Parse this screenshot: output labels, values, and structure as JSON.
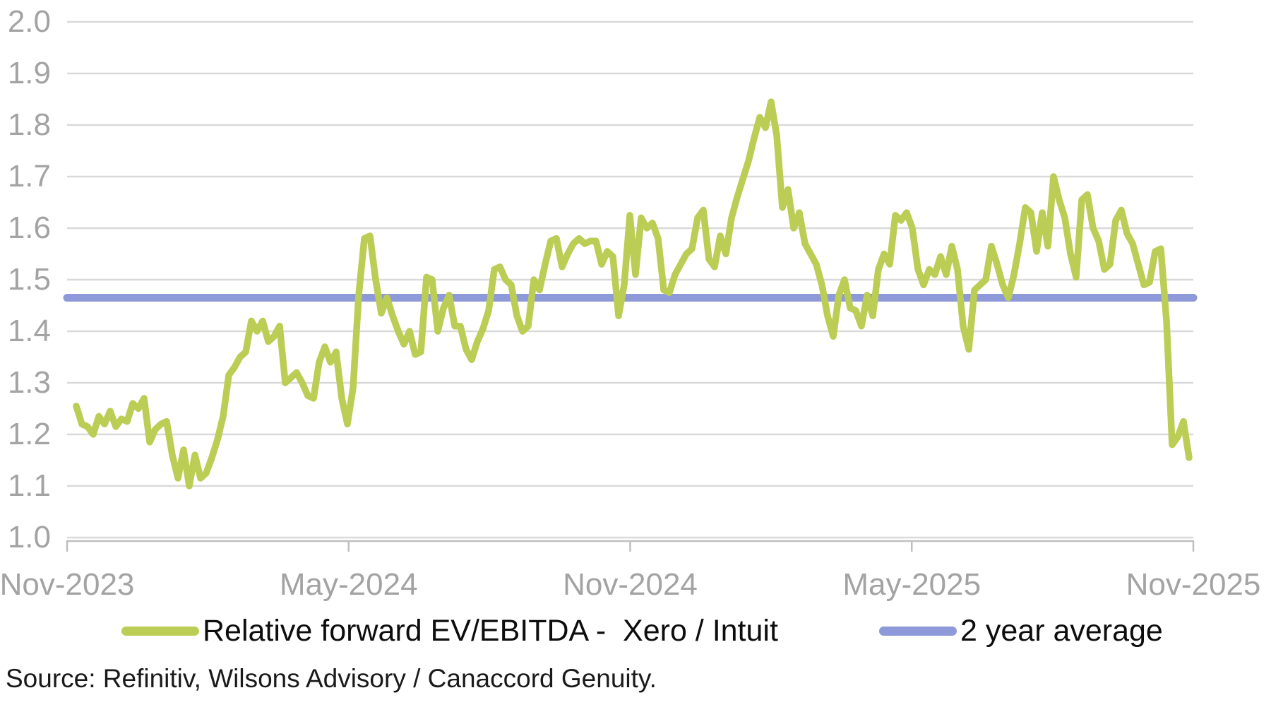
{
  "chart_data": {
    "type": "line",
    "title": "",
    "xlabel": "",
    "ylabel": "",
    "ylim": [
      1.0,
      2.0
    ],
    "grid": "horizontal",
    "legend_position": "bottom",
    "x_ticks": [
      "Nov-2023",
      "May-2024",
      "Nov-2024",
      "May-2025",
      "Nov-2025"
    ],
    "y_ticks": [
      "2.0",
      "1.9",
      "1.8",
      "1.7",
      "1.6",
      "1.5",
      "1.4",
      "1.3",
      "1.2",
      "1.1",
      "1.0"
    ],
    "series": [
      {
        "name": "Relative forward EV/EBITDA -  Xero / Intuit",
        "color": "#bccd55",
        "x_range": [
          "Nov-2023",
          "Nov-2025"
        ],
        "note": "evenly spaced samples of the daily ratio line",
        "values": [
          1.255,
          1.22,
          1.215,
          1.2,
          1.235,
          1.22,
          1.245,
          1.215,
          1.23,
          1.225,
          1.26,
          1.25,
          1.27,
          1.185,
          1.21,
          1.22,
          1.225,
          1.16,
          1.115,
          1.17,
          1.1,
          1.16,
          1.115,
          1.125,
          1.155,
          1.19,
          1.235,
          1.315,
          1.33,
          1.35,
          1.36,
          1.42,
          1.4,
          1.42,
          1.38,
          1.39,
          1.41,
          1.3,
          1.31,
          1.32,
          1.3,
          1.275,
          1.27,
          1.34,
          1.37,
          1.34,
          1.36,
          1.27,
          1.22,
          1.29,
          1.47,
          1.58,
          1.585,
          1.5,
          1.435,
          1.465,
          1.43,
          1.4,
          1.375,
          1.4,
          1.355,
          1.36,
          1.505,
          1.5,
          1.4,
          1.445,
          1.47,
          1.41,
          1.41,
          1.365,
          1.345,
          1.38,
          1.405,
          1.44,
          1.52,
          1.525,
          1.5,
          1.49,
          1.43,
          1.4,
          1.41,
          1.5,
          1.48,
          1.53,
          1.575,
          1.58,
          1.525,
          1.55,
          1.57,
          1.58,
          1.57,
          1.575,
          1.575,
          1.53,
          1.555,
          1.545,
          1.43,
          1.49,
          1.625,
          1.51,
          1.62,
          1.6,
          1.61,
          1.58,
          1.48,
          1.475,
          1.51,
          1.53,
          1.55,
          1.56,
          1.62,
          1.635,
          1.54,
          1.525,
          1.585,
          1.55,
          1.62,
          1.66,
          1.695,
          1.73,
          1.775,
          1.815,
          1.795,
          1.845,
          1.78,
          1.64,
          1.675,
          1.6,
          1.63,
          1.57,
          1.55,
          1.53,
          1.49,
          1.43,
          1.39,
          1.47,
          1.5,
          1.445,
          1.44,
          1.41,
          1.47,
          1.43,
          1.52,
          1.55,
          1.53,
          1.625,
          1.615,
          1.63,
          1.6,
          1.52,
          1.49,
          1.52,
          1.51,
          1.545,
          1.51,
          1.565,
          1.52,
          1.41,
          1.365,
          1.48,
          1.49,
          1.5,
          1.565,
          1.53,
          1.49,
          1.465,
          1.51,
          1.57,
          1.64,
          1.63,
          1.555,
          1.63,
          1.565,
          1.7,
          1.655,
          1.62,
          1.55,
          1.505,
          1.655,
          1.665,
          1.6,
          1.575,
          1.52,
          1.53,
          1.615,
          1.635,
          1.59,
          1.57,
          1.53,
          1.49,
          1.495,
          1.555,
          1.56,
          1.42,
          1.18,
          1.195,
          1.225,
          1.155
        ]
      },
      {
        "name": "2 year average",
        "color": "#8d99d8",
        "value": 1.465
      }
    ]
  },
  "footer": {
    "source": "Source: Refinitiv, Wilsons Advisory / Canaccord Genuity."
  }
}
